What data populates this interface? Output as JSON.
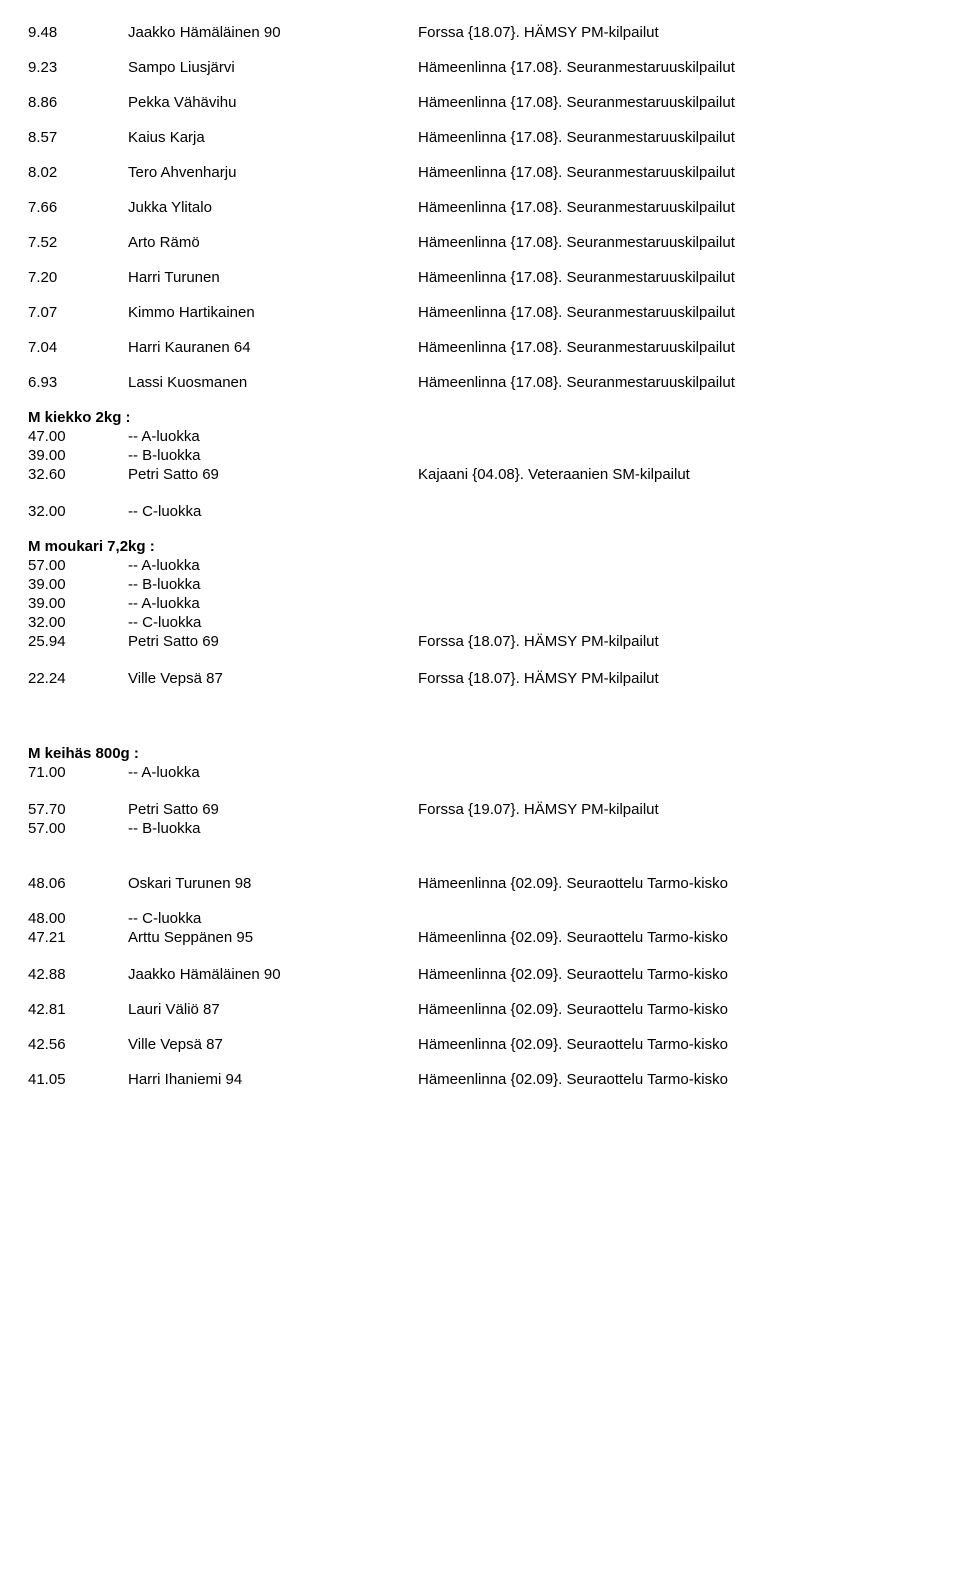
{
  "block1": [
    {
      "l": "9.48",
      "m": "Jaakko Hämäläinen 90",
      "r": "Forssa {18.07}. HÄMSY PM-kilpailut"
    },
    {
      "l": "9.23",
      "m": "Sampo Liusjärvi",
      "r": "Hämeenlinna {17.08}. Seuranmestaruuskilpailut"
    },
    {
      "l": "8.86",
      "m": "Pekka Vähävihu",
      "r": "Hämeenlinna {17.08}. Seuranmestaruuskilpailut"
    },
    {
      "l": "8.57",
      "m": "Kaius Karja",
      "r": "Hämeenlinna {17.08}. Seuranmestaruuskilpailut"
    },
    {
      "l": "8.02",
      "m": "Tero Ahvenharju",
      "r": "Hämeenlinna {17.08}. Seuranmestaruuskilpailut"
    },
    {
      "l": "7.66",
      "m": "Jukka Ylitalo",
      "r": "Hämeenlinna {17.08}. Seuranmestaruuskilpailut"
    },
    {
      "l": "7.52",
      "m": "Arto Rämö",
      "r": "Hämeenlinna {17.08}. Seuranmestaruuskilpailut"
    },
    {
      "l": "7.20",
      "m": "Harri Turunen",
      "r": "Hämeenlinna {17.08}. Seuranmestaruuskilpailut"
    },
    {
      "l": "7.07",
      "m": "Kimmo Hartikainen",
      "r": "Hämeenlinna {17.08}. Seuranmestaruuskilpailut"
    },
    {
      "l": "7.04",
      "m": "Harri Kauranen 64",
      "r": "Hämeenlinna {17.08}. Seuranmestaruuskilpailut"
    },
    {
      "l": "6.93",
      "m": "Lassi Kuosmanen",
      "r": "Hämeenlinna {17.08}. Seuranmestaruuskilpailut"
    }
  ],
  "kiekko": {
    "title": "M kiekko 2kg :",
    "tight": [
      {
        "l": "47.00",
        "m": "-- A-luokka",
        "r": ""
      },
      {
        "l": "39.00",
        "m": "-- B-luokka",
        "r": ""
      },
      {
        "l": "32.60",
        "m": "Petri Satto 69",
        "r": "Kajaani {04.08}. Veteraanien SM-kilpailut"
      }
    ],
    "after": [
      {
        "l": "32.00",
        "m": "-- C-luokka",
        "r": ""
      }
    ]
  },
  "moukari": {
    "title": "M moukari 7,2kg :",
    "tight": [
      {
        "l": "57.00",
        "m": "-- A-luokka",
        "r": ""
      },
      {
        "l": "39.00",
        "m": "-- B-luokka",
        "r": ""
      },
      {
        "l": "39.00",
        "m": "-- A-luokka",
        "r": ""
      },
      {
        "l": "32.00",
        "m": "-- C-luokka",
        "r": ""
      },
      {
        "l": "25.94",
        "m": "Petri Satto 69",
        "r": "Forssa {18.07}. HÄMSY PM-kilpailut"
      }
    ],
    "after": [
      {
        "l": "22.24",
        "m": "Ville Vepsä 87",
        "r": "Forssa {18.07}. HÄMSY PM-kilpailut"
      }
    ]
  },
  "keihas": {
    "title": "M keihäs 800g :",
    "tight1": [
      {
        "l": "71.00",
        "m": "-- A-luokka",
        "r": ""
      }
    ],
    "tight2": [
      {
        "l": "57.70",
        "m": "Petri Satto 69",
        "r": "Forssa {19.07}. HÄMSY PM-kilpailut"
      },
      {
        "l": "57.00",
        "m": "-- B-luokka",
        "r": ""
      }
    ],
    "after1": [
      {
        "l": "48.06",
        "m": "Oskari Turunen 98",
        "r": "Hämeenlinna {02.09}. Seuraottelu Tarmo-kisko"
      }
    ],
    "tight3": [
      {
        "l": "48.00",
        "m": "-- C-luokka",
        "r": ""
      },
      {
        "l": "47.21",
        "m": "Arttu Seppänen 95",
        "r": "Hämeenlinna {02.09}. Seuraottelu Tarmo-kisko"
      }
    ],
    "after2": [
      {
        "l": "42.88",
        "m": "Jaakko Hämäläinen 90",
        "r": "Hämeenlinna {02.09}. Seuraottelu Tarmo-kisko"
      },
      {
        "l": "42.81",
        "m": "Lauri Väliö 87",
        "r": "Hämeenlinna {02.09}. Seuraottelu Tarmo-kisko"
      },
      {
        "l": "42.56",
        "m": "Ville Vepsä 87",
        "r": "Hämeenlinna {02.09}. Seuraottelu Tarmo-kisko"
      },
      {
        "l": "41.05",
        "m": "Harri Ihaniemi 94",
        "r": "Hämeenlinna {02.09}. Seuraottelu Tarmo-kisko"
      }
    ]
  }
}
